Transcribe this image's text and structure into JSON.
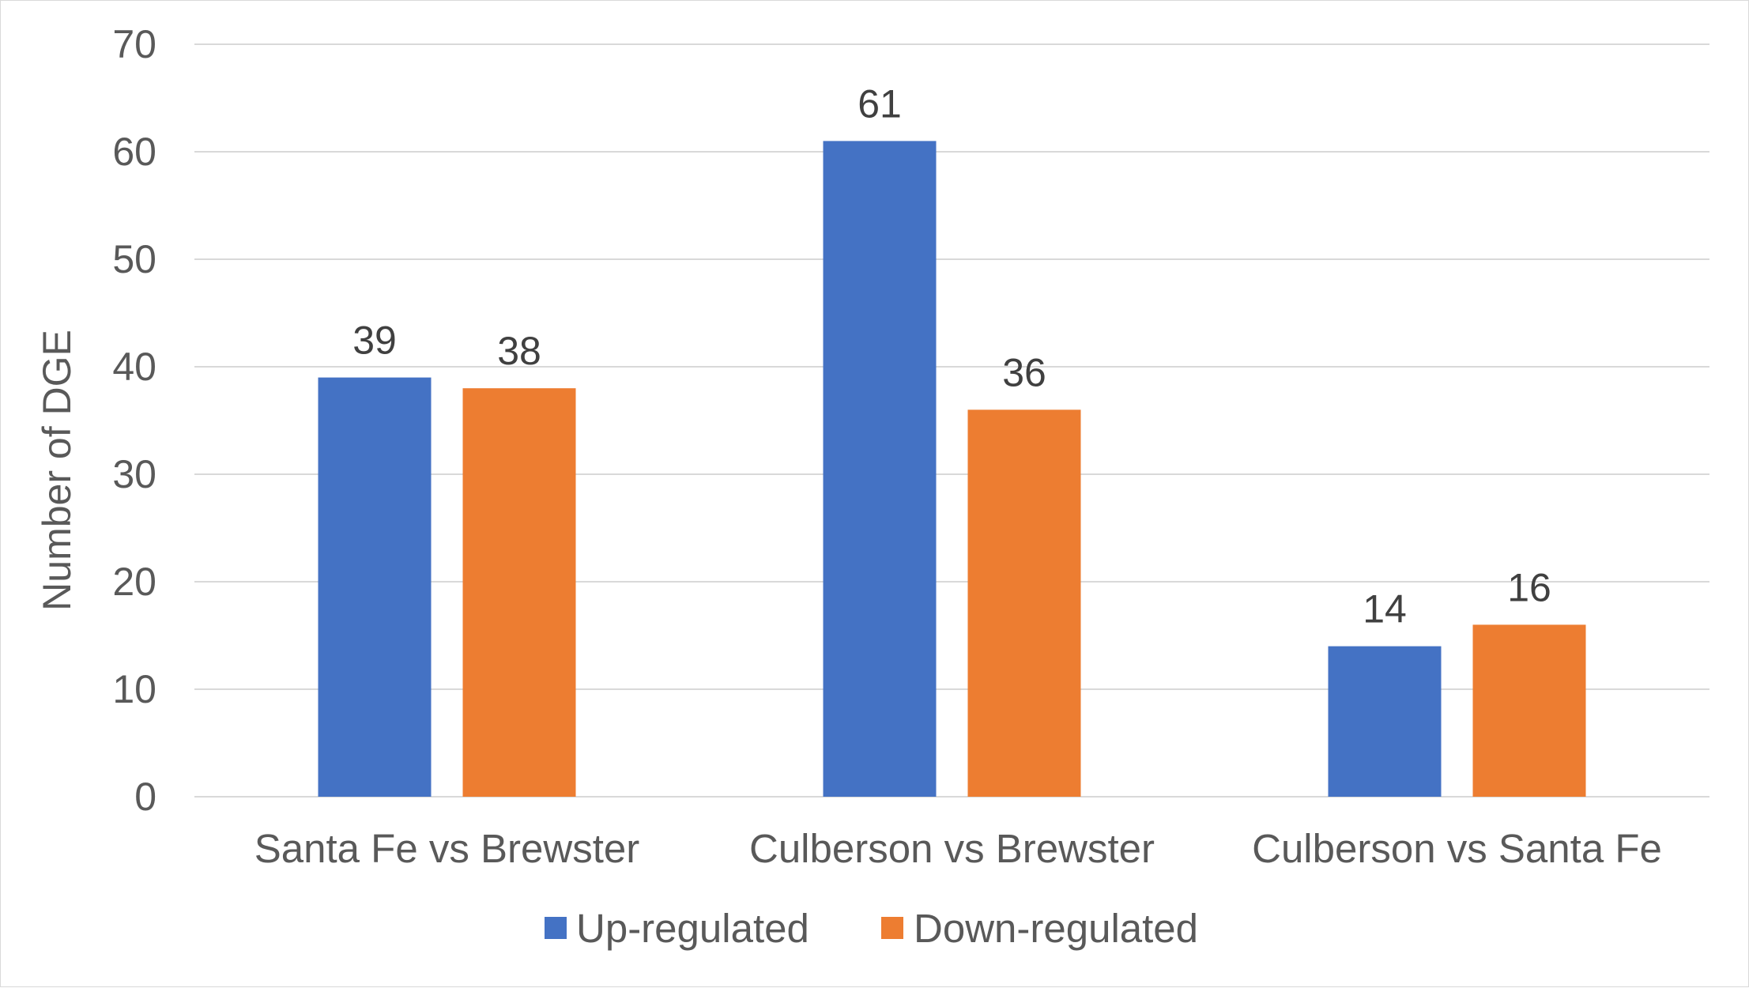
{
  "chart_data": {
    "type": "bar",
    "title": "",
    "xlabel": "",
    "ylabel": "Number of DGE",
    "ylim": [
      0,
      70
    ],
    "ytick_step": 10,
    "categories": [
      "Santa Fe vs Brewster",
      "Culberson vs Brewster",
      "Culberson vs Santa Fe"
    ],
    "series": [
      {
        "name": "Up-regulated",
        "values": [
          39,
          61,
          14
        ],
        "color": "#4472C4"
      },
      {
        "name": "Down-regulated",
        "values": [
          38,
          36,
          16
        ],
        "color": "#ED7D31"
      }
    ],
    "grid": true,
    "legend": "bottom-center",
    "data_labels": true,
    "gridline_color": "#d9d9d9",
    "text_color": "#595959"
  }
}
